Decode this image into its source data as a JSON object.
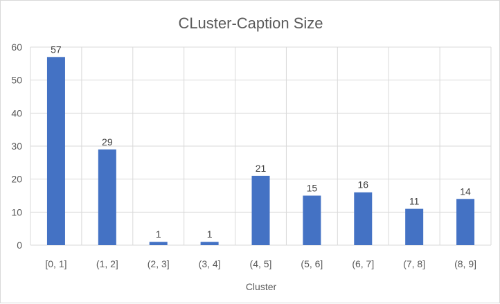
{
  "chart_data": {
    "type": "bar",
    "title": "CLuster-Caption Size",
    "xlabel": "Cluster",
    "ylabel": "",
    "categories": [
      "[0, 1]",
      "(1, 2]",
      "(2, 3]",
      "(3, 4]",
      "(4, 5]",
      "(5, 6]",
      "(6, 7]",
      "(7, 8]",
      "(8, 9]"
    ],
    "values": [
      57,
      29,
      1,
      1,
      21,
      15,
      16,
      11,
      14
    ],
    "ylim": [
      0,
      60
    ],
    "yticks": [
      "0",
      "10",
      "20",
      "30",
      "40",
      "50",
      "60"
    ],
    "grid": true,
    "legend": "none",
    "data_labels": true,
    "bar_color": "#4472c4",
    "grid_color": "#d9d9d9"
  }
}
